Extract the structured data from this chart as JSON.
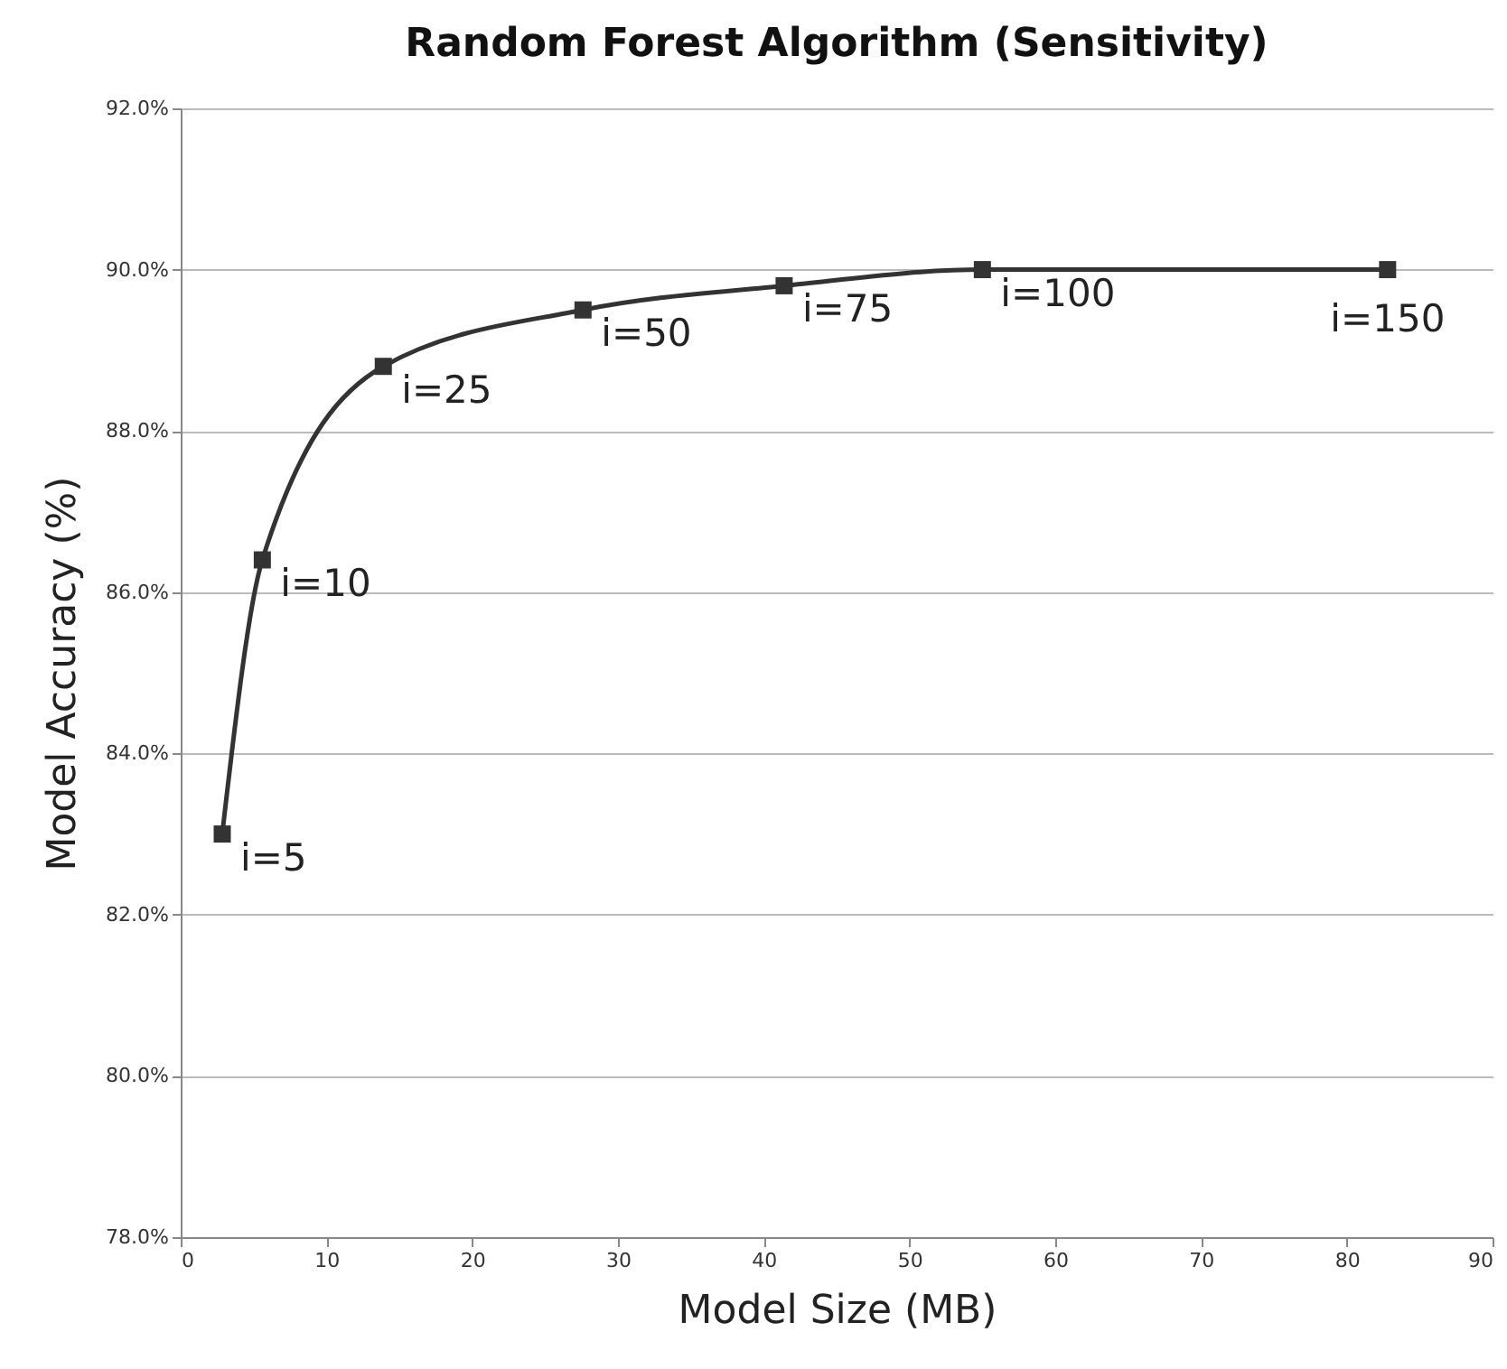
{
  "chart_data": {
    "type": "line",
    "title": "Random Forest Algorithm (Sensitivity)",
    "xlabel": "Model Size (MB)",
    "ylabel": "Model Accuracy (%)",
    "x": [
      2.85,
      5.6,
      13.9,
      27.6,
      41.4,
      55,
      82.8
    ],
    "series": [
      {
        "color": "#333333",
        "values": [
          83.0,
          86.4,
          88.8,
          89.5,
          89.8,
          90.0,
          90.0
        ]
      }
    ],
    "xlim": [
      0,
      90
    ],
    "xticks": [
      0,
      10,
      20,
      30,
      40,
      50,
      60,
      70,
      80,
      90
    ],
    "ylim": [
      78,
      92
    ],
    "yticks": [
      {
        "value": 78,
        "label": "78.0%"
      },
      {
        "value": 80,
        "label": "80.0%"
      },
      {
        "value": 82,
        "label": "82.0%"
      },
      {
        "value": 84,
        "label": "84.0%"
      },
      {
        "value": 86,
        "label": "86.0%"
      },
      {
        "value": 88,
        "label": "88.0%"
      },
      {
        "value": 90,
        "label": "90.0%"
      },
      {
        "value": 92,
        "label": "92.0%"
      }
    ],
    "grid": "y",
    "marker": "square",
    "line_style": "solid",
    "annotations": [
      {
        "text": "i=5",
        "x": 2.85,
        "y": 83.0
      },
      {
        "text": "i=10",
        "x": 5.6,
        "y": 86.4
      },
      {
        "text": "i=25",
        "x": 13.9,
        "y": 88.8
      },
      {
        "text": "i=50",
        "x": 27.6,
        "y": 89.5
      },
      {
        "text": "i=75",
        "x": 41.4,
        "y": 89.8
      },
      {
        "text": "i=100",
        "x": 55,
        "y": 90.0
      },
      {
        "text": "i=150",
        "x": 82.8,
        "y": 90.0
      }
    ]
  }
}
